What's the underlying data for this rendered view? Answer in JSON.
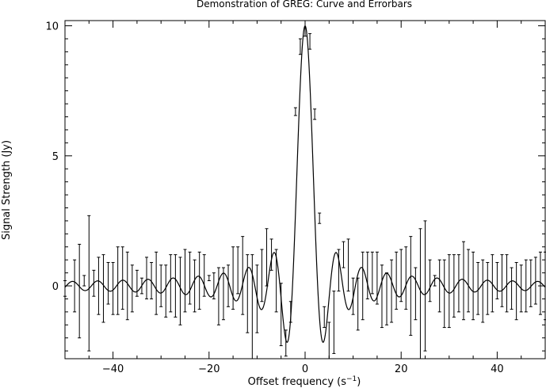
{
  "chart_data": {
    "type": "line",
    "title": "Demonstration of GREG: Curve and Errorbars",
    "xlabel": "Offset frequency (s",
    "xlabel_sup": "−1",
    "xlabel_end": ")",
    "ylabel": "Signal Strength (Jy)",
    "xlim": [
      -50,
      50
    ],
    "ylim": [
      -2.8,
      10.2
    ],
    "x_ticks": [
      -40,
      -20,
      0,
      20,
      40
    ],
    "x_tick_labels": [
      "−40",
      "−20",
      "0",
      "20",
      "40"
    ],
    "y_ticks": [
      0,
      5,
      10
    ],
    "y_tick_labels": [
      "0",
      "5",
      "10"
    ],
    "grid": false,
    "legend": "none",
    "curve": "10*sin(1.2x)/(1.2x)",
    "series": [
      {
        "style": "errorbars",
        "points": [
          {
            "x": -50.0,
            "y": -0.1,
            "err": 0.3
          },
          {
            "x": -48.0,
            "y": 0.0,
            "err": 1.0
          },
          {
            "x": -47.0,
            "y": -0.2,
            "err": 1.8
          },
          {
            "x": -46.0,
            "y": 0.2,
            "err": 0.2
          },
          {
            "x": -45.0,
            "y": 0.1,
            "err": 2.6
          },
          {
            "x": -44.0,
            "y": 0.1,
            "err": 0.5
          },
          {
            "x": -43.0,
            "y": 0.0,
            "err": 1.1
          },
          {
            "x": -42.0,
            "y": -0.1,
            "err": 1.3
          },
          {
            "x": -41.0,
            "y": 0.1,
            "err": 0.8
          },
          {
            "x": -40.0,
            "y": -0.1,
            "err": 1.0
          },
          {
            "x": -39.0,
            "y": 0.2,
            "err": 1.3
          },
          {
            "x": -38.0,
            "y": 0.3,
            "err": 1.2
          },
          {
            "x": -37.0,
            "y": 0.0,
            "err": 1.3
          },
          {
            "x": -36.0,
            "y": -0.1,
            "err": 0.9
          },
          {
            "x": -35.0,
            "y": 0.1,
            "err": 0.5
          },
          {
            "x": -34.0,
            "y": 0.0,
            "err": 0.3
          },
          {
            "x": -33.0,
            "y": 0.3,
            "err": 0.8
          },
          {
            "x": -32.0,
            "y": 0.2,
            "err": 0.7
          },
          {
            "x": -31.0,
            "y": 0.1,
            "err": 1.2
          },
          {
            "x": -30.0,
            "y": 0.0,
            "err": 0.8
          },
          {
            "x": -29.0,
            "y": -0.2,
            "err": 1.0
          },
          {
            "x": -28.0,
            "y": 0.1,
            "err": 1.1
          },
          {
            "x": -27.0,
            "y": 0.0,
            "err": 1.2
          },
          {
            "x": -26.0,
            "y": -0.2,
            "err": 1.3
          },
          {
            "x": -25.0,
            "y": 0.2,
            "err": 1.2
          },
          {
            "x": -24.0,
            "y": 0.3,
            "err": 1.0
          },
          {
            "x": -23.0,
            "y": 0.0,
            "err": 1.0
          },
          {
            "x": -22.0,
            "y": 0.2,
            "err": 1.1
          },
          {
            "x": -21.0,
            "y": 0.4,
            "err": 0.8
          },
          {
            "x": -20.0,
            "y": 0.3,
            "err": 0.1
          },
          {
            "x": -19.0,
            "y": 0.0,
            "err": 0.5
          },
          {
            "x": -18.0,
            "y": -0.4,
            "err": 1.1
          },
          {
            "x": -17.0,
            "y": -0.3,
            "err": 1.0
          },
          {
            "x": -16.0,
            "y": 0.0,
            "err": 0.8
          },
          {
            "x": -15.0,
            "y": 0.3,
            "err": 1.2
          },
          {
            "x": -14.0,
            "y": 0.6,
            "err": 0.9
          },
          {
            "x": -13.0,
            "y": 0.4,
            "err": 1.5
          },
          {
            "x": -12.0,
            "y": -0.3,
            "err": 1.5
          },
          {
            "x": -11.0,
            "y": -0.8,
            "err": 2.0
          },
          {
            "x": -10.0,
            "y": -0.5,
            "err": 1.3
          },
          {
            "x": -9.0,
            "y": 0.4,
            "err": 1.0
          },
          {
            "x": -8.0,
            "y": 1.1,
            "err": 1.1
          },
          {
            "x": -7.0,
            "y": 1.2,
            "err": 0.6
          },
          {
            "x": -6.0,
            "y": 0.2,
            "err": 1.2
          },
          {
            "x": -5.0,
            "y": -1.1,
            "err": 1.2
          },
          {
            "x": -4.0,
            "y": -2.2,
            "err": 0.5
          },
          {
            "x": -3.0,
            "y": -1.0,
            "err": 0.4
          },
          {
            "x": -2.0,
            "y": 6.7,
            "err": 0.15
          },
          {
            "x": -1.0,
            "y": 9.2,
            "err": 0.3
          },
          {
            "x": 0.0,
            "y": 10.0,
            "err": 0.4
          },
          {
            "x": 1.0,
            "y": 9.4,
            "err": 0.3
          },
          {
            "x": 2.0,
            "y": 6.6,
            "err": 0.2
          },
          {
            "x": 3.0,
            "y": 2.6,
            "err": 0.2
          },
          {
            "x": 4.0,
            "y": -1.2,
            "err": 0.4
          },
          {
            "x": 5.0,
            "y": -2.1,
            "err": 0.7
          },
          {
            "x": 6.0,
            "y": -1.4,
            "err": 1.2
          },
          {
            "x": 7.0,
            "y": 0.6,
            "err": 0.8
          },
          {
            "x": 8.0,
            "y": 1.2,
            "err": 0.5
          },
          {
            "x": 9.0,
            "y": 0.8,
            "err": 1.0
          },
          {
            "x": 10.0,
            "y": -0.4,
            "err": 0.7
          },
          {
            "x": 11.0,
            "y": -0.7,
            "err": 1.0
          },
          {
            "x": 12.0,
            "y": 0.0,
            "err": 1.3
          },
          {
            "x": 13.0,
            "y": 0.4,
            "err": 0.9
          },
          {
            "x": 14.0,
            "y": 0.5,
            "err": 0.8
          },
          {
            "x": 15.0,
            "y": 0.3,
            "err": 1.0
          },
          {
            "x": 16.0,
            "y": -0.4,
            "err": 1.2
          },
          {
            "x": 17.0,
            "y": -0.5,
            "err": 1.0
          },
          {
            "x": 18.0,
            "y": -0.2,
            "err": 1.2
          },
          {
            "x": 19.0,
            "y": 0.2,
            "err": 1.1
          },
          {
            "x": 20.0,
            "y": 0.4,
            "err": 1.0
          },
          {
            "x": 21.0,
            "y": 0.3,
            "err": 1.2
          },
          {
            "x": 22.0,
            "y": 0.0,
            "err": 1.9
          },
          {
            "x": 23.0,
            "y": -0.3,
            "err": 1.0
          },
          {
            "x": 24.0,
            "y": -0.3,
            "err": 2.5
          },
          {
            "x": 25.0,
            "y": 0.0,
            "err": 2.5
          },
          {
            "x": 26.0,
            "y": 0.2,
            "err": 0.8
          },
          {
            "x": 27.0,
            "y": 0.2,
            "err": 0.2
          },
          {
            "x": 28.0,
            "y": 0.0,
            "err": 1.0
          },
          {
            "x": 29.0,
            "y": -0.3,
            "err": 1.3
          },
          {
            "x": 30.0,
            "y": -0.2,
            "err": 1.4
          },
          {
            "x": 31.0,
            "y": 0.0,
            "err": 1.2
          },
          {
            "x": 32.0,
            "y": 0.1,
            "err": 1.1
          },
          {
            "x": 33.0,
            "y": 0.2,
            "err": 1.5
          },
          {
            "x": 34.0,
            "y": 0.2,
            "err": 1.2
          },
          {
            "x": 35.0,
            "y": 0.0,
            "err": 1.3
          },
          {
            "x": 36.0,
            "y": -0.1,
            "err": 1.0
          },
          {
            "x": 37.0,
            "y": -0.2,
            "err": 1.2
          },
          {
            "x": 38.0,
            "y": -0.1,
            "err": 1.0
          },
          {
            "x": 39.0,
            "y": 0.1,
            "err": 1.1
          },
          {
            "x": 40.0,
            "y": 0.2,
            "err": 0.7
          },
          {
            "x": 41.0,
            "y": 0.2,
            "err": 1.0
          },
          {
            "x": 42.0,
            "y": 0.1,
            "err": 1.1
          },
          {
            "x": 43.0,
            "y": -0.1,
            "err": 0.8
          },
          {
            "x": 44.0,
            "y": -0.2,
            "err": 1.1
          },
          {
            "x": 45.0,
            "y": -0.1,
            "err": 0.9
          },
          {
            "x": 46.0,
            "y": 0.0,
            "err": 1.0
          },
          {
            "x": 47.0,
            "y": 0.1,
            "err": 0.9
          },
          {
            "x": 48.0,
            "y": 0.2,
            "err": 0.9
          },
          {
            "x": 49.0,
            "y": 0.1,
            "err": 1.2
          },
          {
            "x": 50.0,
            "y": 0.0,
            "err": 1.3
          }
        ]
      }
    ]
  }
}
